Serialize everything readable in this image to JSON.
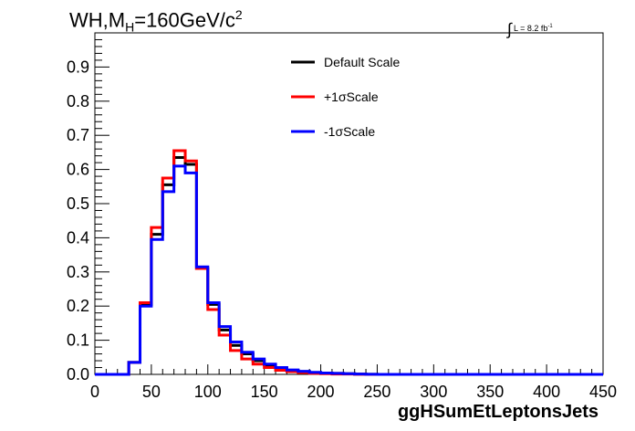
{
  "header": {
    "title_main": "WH,M",
    "title_sub": "H",
    "title_rest": "=160GeV/c",
    "title_sup": "2",
    "lumi_prefix": "∫",
    "lumi_text": "L = 8.2 fb",
    "lumi_sup": "-1"
  },
  "chart_data": {
    "type": "line",
    "xlabel": "ggHSumEtLeptonsJets",
    "ylabel": "",
    "xlim": [
      0,
      450
    ],
    "ylim": [
      0,
      1.0
    ],
    "xticks": [
      0,
      50,
      100,
      150,
      200,
      250,
      300,
      350,
      400,
      450
    ],
    "yticks": [
      0.0,
      0.1,
      0.2,
      0.3,
      0.4,
      0.5,
      0.6,
      0.7,
      0.8,
      0.9
    ],
    "ytick_labels": [
      "0.0",
      "0.1",
      "0.2",
      "0.3",
      "0.4",
      "0.5",
      "0.6",
      "0.7",
      "0.8",
      "0.9"
    ],
    "grid": false,
    "legend_position": "top-center",
    "bin_edges": [
      0,
      10,
      20,
      30,
      40,
      50,
      60,
      70,
      80,
      90,
      100,
      110,
      120,
      130,
      140,
      150,
      160,
      170,
      180,
      190,
      200,
      210,
      220,
      230,
      240,
      250,
      450
    ],
    "series": [
      {
        "name": "Default Scale",
        "color": "#000000",
        "values": [
          0,
          0,
          0,
          0.035,
          0.205,
          0.41,
          0.555,
          0.635,
          0.615,
          0.31,
          0.205,
          0.13,
          0.085,
          0.06,
          0.04,
          0.028,
          0.018,
          0.012,
          0.008,
          0.005,
          0.004,
          0.003,
          0.002,
          0.001,
          0.0005,
          0
        ]
      },
      {
        "name": "+1σScale",
        "color": "#ff0000",
        "values": [
          0,
          0,
          0,
          0.035,
          0.21,
          0.43,
          0.575,
          0.655,
          0.625,
          0.31,
          0.19,
          0.115,
          0.07,
          0.045,
          0.03,
          0.02,
          0.012,
          0.008,
          0.005,
          0.003,
          0.002,
          0.001,
          0.001,
          0.0005,
          0,
          0
        ]
      },
      {
        "name": "-1σScale",
        "color": "#0000ff",
        "values": [
          0,
          0,
          0,
          0.035,
          0.2,
          0.395,
          0.535,
          0.61,
          0.59,
          0.315,
          0.21,
          0.14,
          0.095,
          0.065,
          0.045,
          0.03,
          0.02,
          0.013,
          0.009,
          0.006,
          0.004,
          0.003,
          0.002,
          0.001,
          0.0005,
          0
        ]
      }
    ]
  }
}
